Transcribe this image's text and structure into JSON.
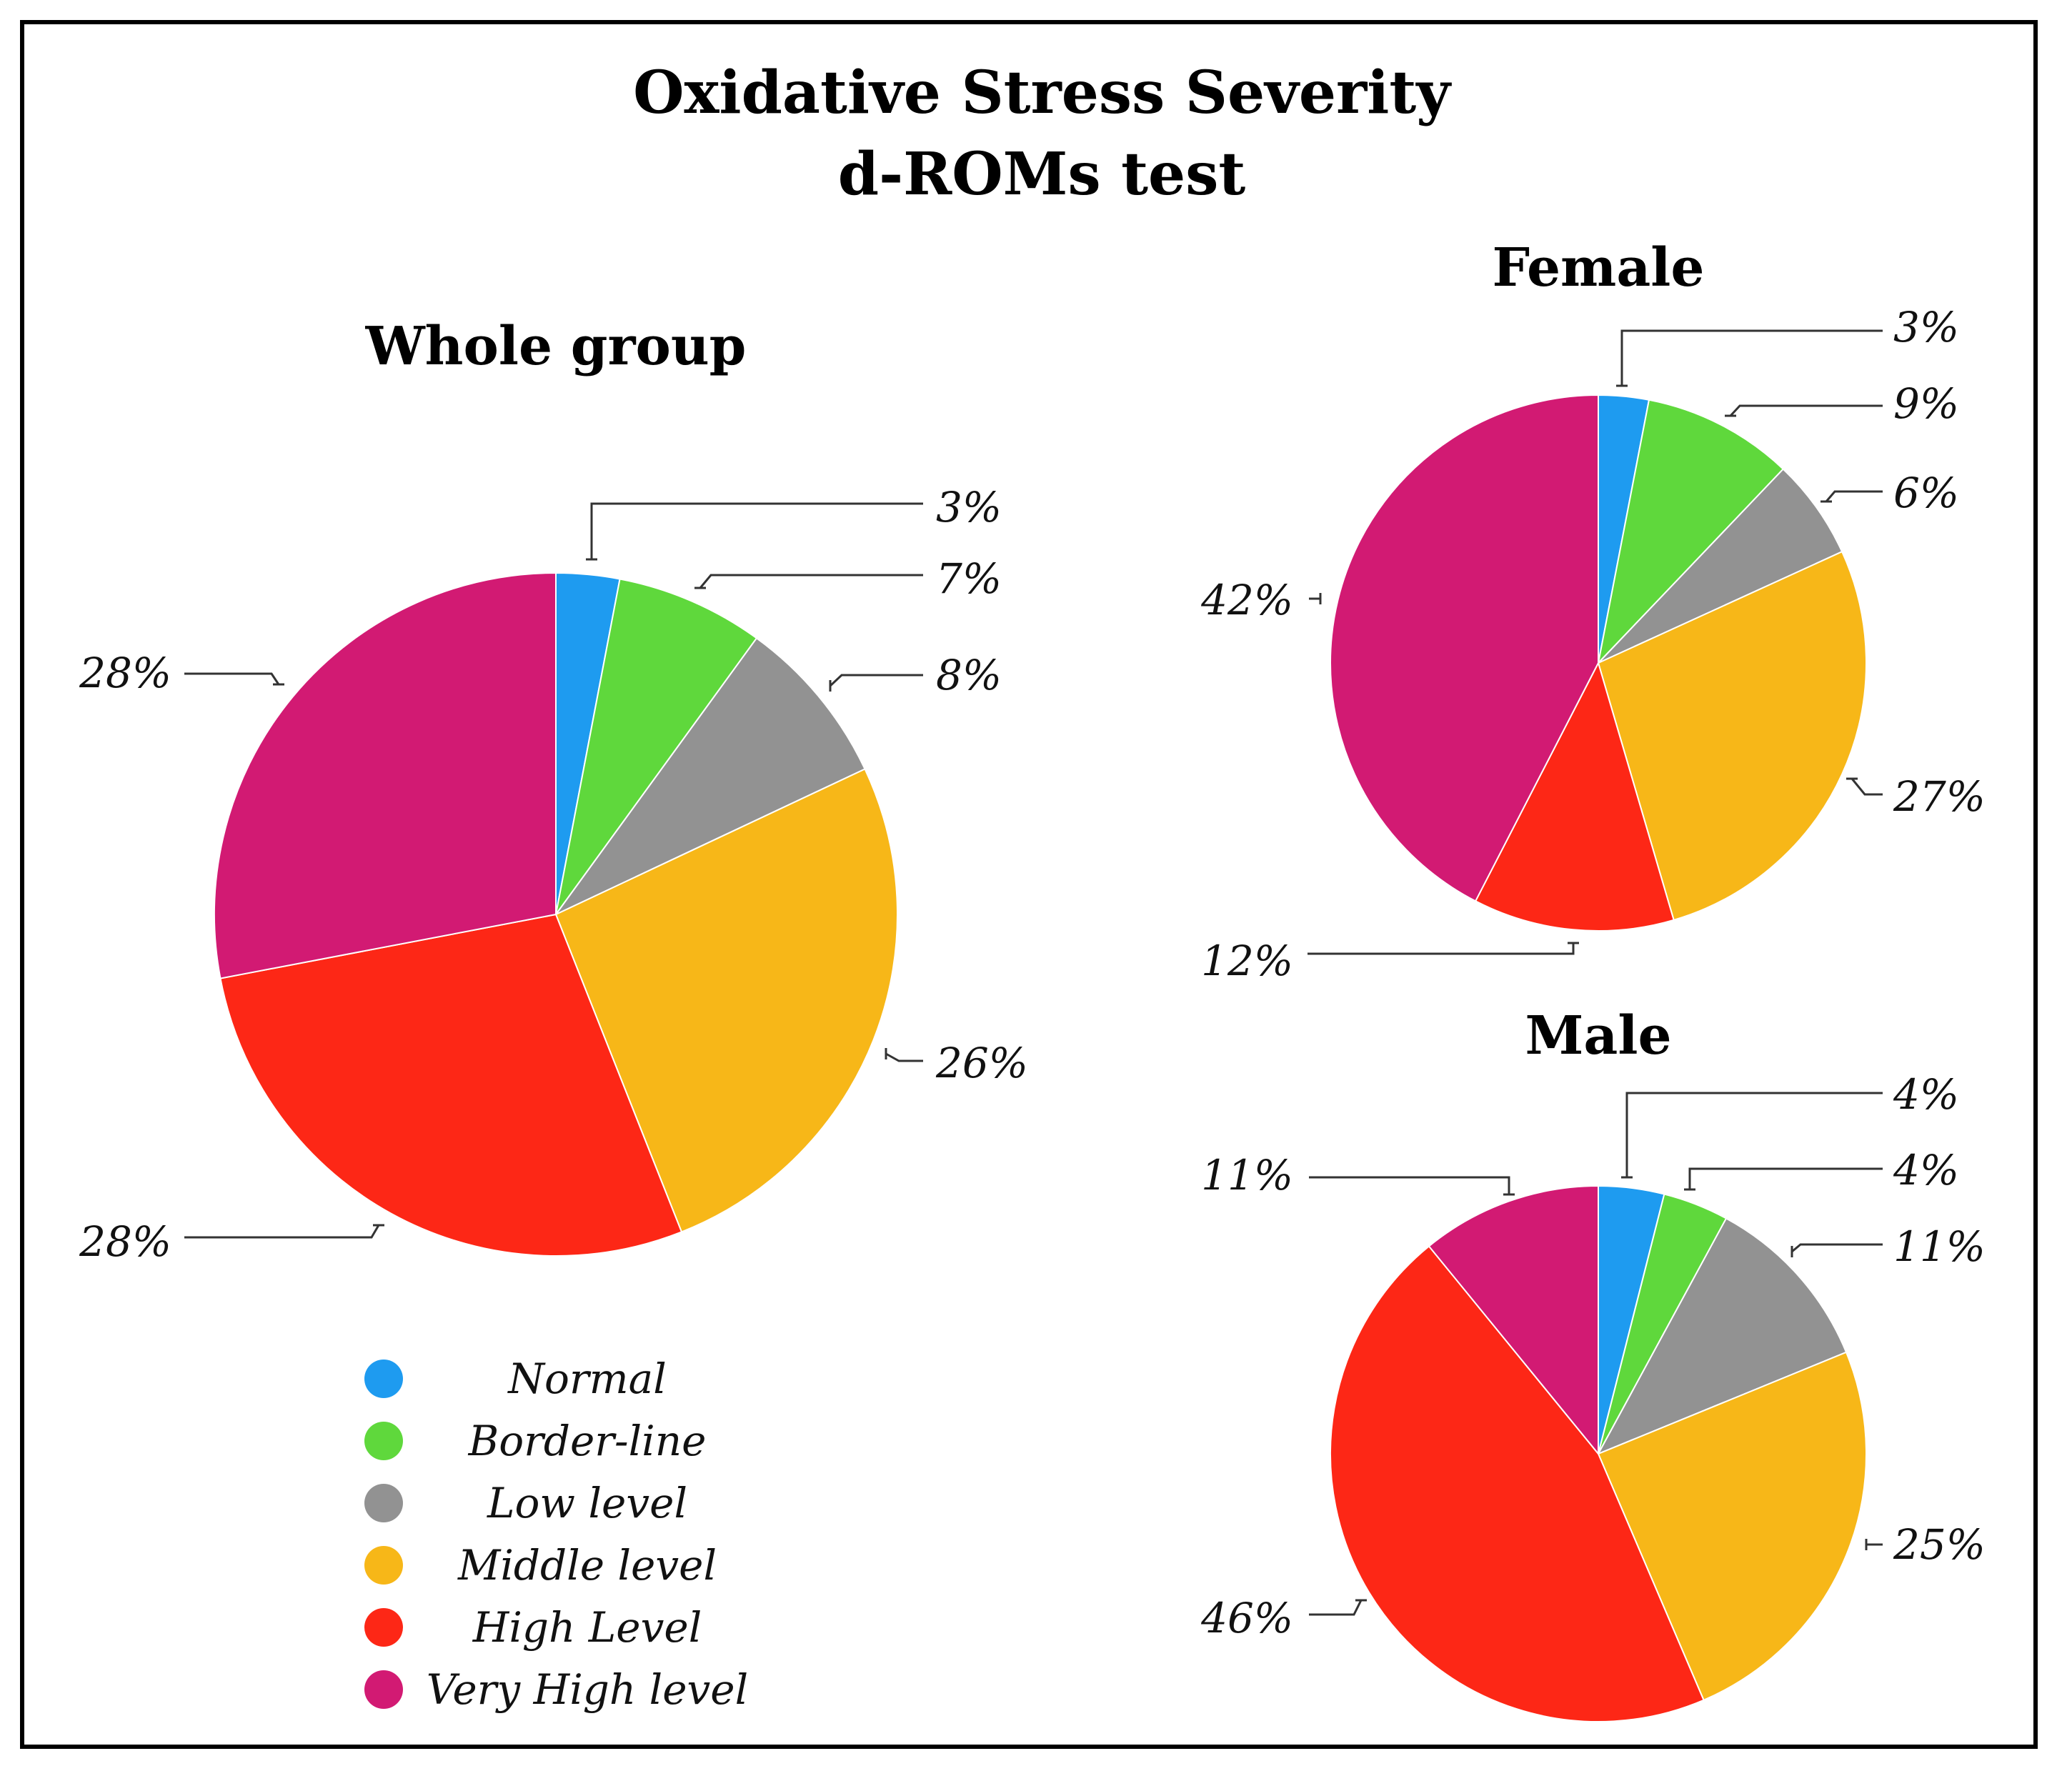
{
  "title_line1": "Oxidative Stress Severity",
  "title_line2": "d-ROMs test",
  "colors": {
    "Normal": "#1e9bf0",
    "Border-line": "#5fd83c",
    "Low level": "#929292",
    "Middle level": "#f7b718",
    "High Level": "#fd2716",
    "Very High level": "#d21a73"
  },
  "legend": [
    {
      "label": "Normal",
      "color": "#1e9bf0"
    },
    {
      "label": "Border-line",
      "color": "#5fd83c"
    },
    {
      "label": "Low level",
      "color": "#929292"
    },
    {
      "label": "Middle level",
      "color": "#f7b718"
    },
    {
      "label": "High Level",
      "color": "#fd2716"
    },
    {
      "label": "Very High level",
      "color": "#d21a73"
    }
  ],
  "chart_data": [
    {
      "type": "pie",
      "title": "Whole group",
      "categories": [
        "Normal",
        "Border-line",
        "Low level",
        "Middle level",
        "High Level",
        "Very High level"
      ],
      "values": [
        3,
        7,
        8,
        26,
        28,
        28
      ],
      "labels": [
        "3%",
        "7%",
        "8%",
        "26%",
        "28%",
        "28%"
      ]
    },
    {
      "type": "pie",
      "title": "Female",
      "categories": [
        "Normal",
        "Border-line",
        "Low level",
        "Middle level",
        "High Level",
        "Very High level"
      ],
      "values": [
        3,
        9,
        6,
        27,
        12,
        42
      ],
      "labels": [
        "3%",
        "9%",
        "6%",
        "27%",
        "12%",
        "42%"
      ]
    },
    {
      "type": "pie",
      "title": "Male",
      "categories": [
        "Normal",
        "Border-line",
        "Low level",
        "Middle level",
        "High Level",
        "Very High level"
      ],
      "values": [
        4,
        4,
        11,
        25,
        46,
        11
      ],
      "labels": [
        "4%",
        "4%",
        "11%",
        "25%",
        "46%",
        "11%"
      ]
    }
  ]
}
